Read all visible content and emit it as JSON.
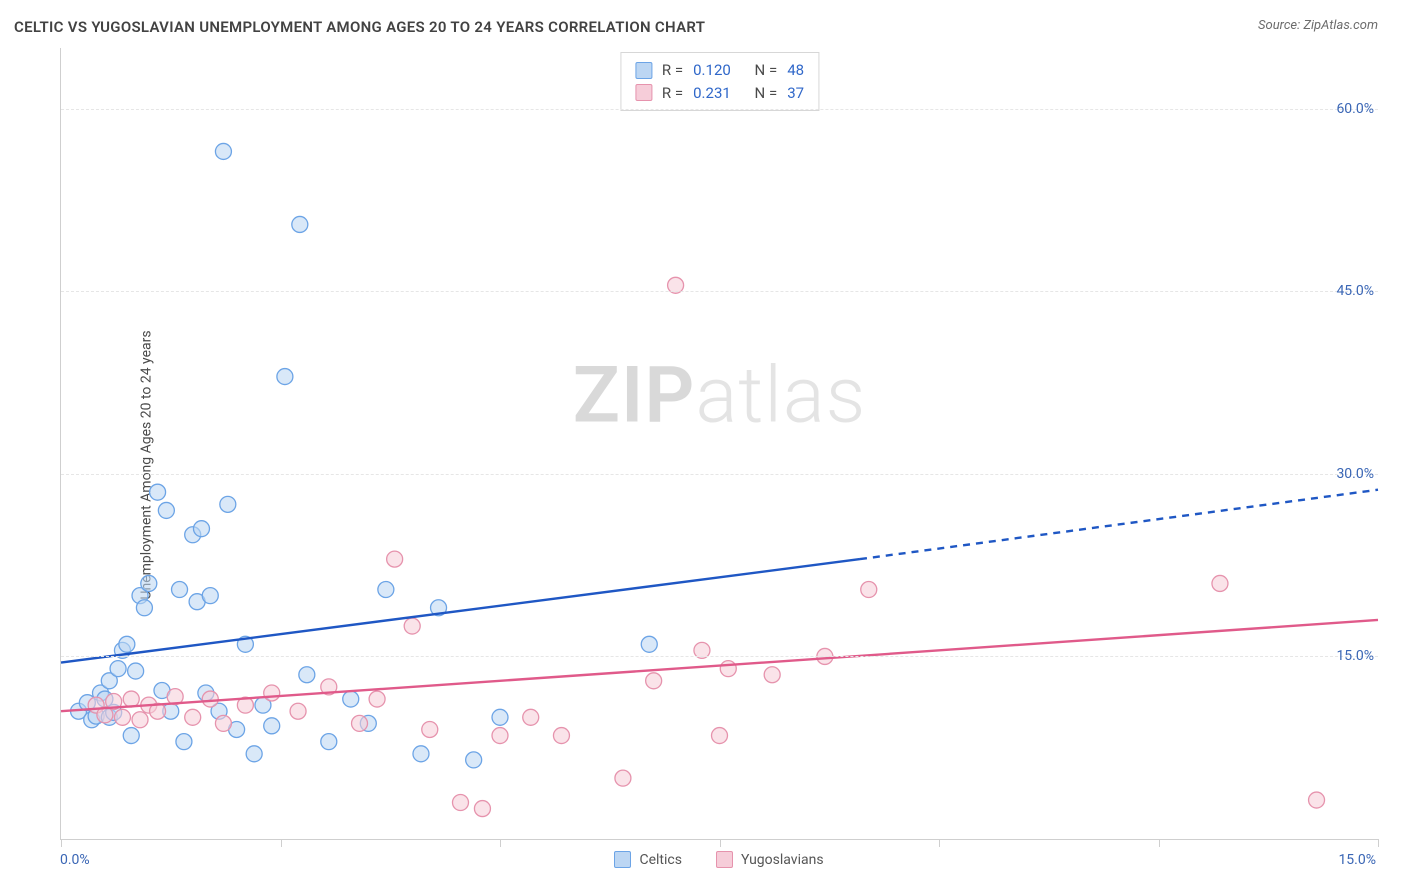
{
  "meta": {
    "title": "CELTIC VS YUGOSLAVIAN UNEMPLOYMENT AMONG AGES 20 TO 24 YEARS CORRELATION CHART",
    "source_prefix": "Source: ",
    "source_name": "ZipAtlas.com",
    "watermark_a": "ZIP",
    "watermark_b": "atlas"
  },
  "chart": {
    "type": "scatter-with-trend",
    "background_color": "#ffffff",
    "grid_color": "#e6e6e6",
    "axis_color": "#cfcfcf",
    "yaxis_label": "Unemployment Among Ages 20 to 24 years",
    "yaxis_label_fontsize": 14,
    "tick_label_color": "#3a66b5",
    "tick_label_fontsize": 14,
    "xlim": [
      0,
      15
    ],
    "ylim": [
      0,
      65
    ],
    "xticks": [
      0,
      2.5,
      5,
      7.5,
      10,
      12.5,
      15
    ],
    "yticks": [
      15,
      30,
      45,
      60
    ],
    "ytick_labels": [
      "15.0%",
      "30.0%",
      "45.0%",
      "60.0%"
    ],
    "x_min_label": "0.0%",
    "x_max_label": "15.0%",
    "marker_radius": 8,
    "marker_stroke_width": 1.3,
    "marker_fill_opacity": 0.22,
    "trend_stroke_width": 2.4,
    "series": [
      {
        "key": "celtics",
        "label": "Celtics",
        "stroke": "#6ca4e6",
        "fill": "#bcd6f3",
        "trend_color": "#1f57c4",
        "trend": {
          "x1": 0,
          "y1": 14.5,
          "x2": 9.1,
          "y2": 23.0
        },
        "trend_ext": {
          "x1": 9.1,
          "y1": 23.0,
          "x2": 15,
          "y2": 28.7
        },
        "points": [
          [
            0.2,
            10.5
          ],
          [
            0.3,
            11.2
          ],
          [
            0.35,
            9.8
          ],
          [
            0.4,
            10.1
          ],
          [
            0.45,
            12.0
          ],
          [
            0.5,
            11.5
          ],
          [
            0.55,
            13.0
          ],
          [
            0.55,
            10.0
          ],
          [
            0.6,
            10.4
          ],
          [
            0.65,
            14.0
          ],
          [
            0.7,
            15.5
          ],
          [
            0.75,
            16.0
          ],
          [
            0.8,
            8.5
          ],
          [
            0.85,
            13.8
          ],
          [
            0.9,
            20.0
          ],
          [
            0.95,
            19.0
          ],
          [
            1.0,
            21.0
          ],
          [
            1.1,
            28.5
          ],
          [
            1.15,
            12.2
          ],
          [
            1.2,
            27.0
          ],
          [
            1.25,
            10.5
          ],
          [
            1.35,
            20.5
          ],
          [
            1.4,
            8.0
          ],
          [
            1.5,
            25.0
          ],
          [
            1.55,
            19.5
          ],
          [
            1.6,
            25.5
          ],
          [
            1.65,
            12.0
          ],
          [
            1.7,
            20.0
          ],
          [
            1.8,
            10.5
          ],
          [
            1.85,
            56.5
          ],
          [
            1.9,
            27.5
          ],
          [
            2.0,
            9.0
          ],
          [
            2.1,
            16.0
          ],
          [
            2.2,
            7.0
          ],
          [
            2.3,
            11.0
          ],
          [
            2.4,
            9.3
          ],
          [
            2.55,
            38.0
          ],
          [
            2.72,
            50.5
          ],
          [
            2.8,
            13.5
          ],
          [
            3.05,
            8.0
          ],
          [
            3.3,
            11.5
          ],
          [
            3.5,
            9.5
          ],
          [
            3.7,
            20.5
          ],
          [
            4.1,
            7.0
          ],
          [
            4.3,
            19.0
          ],
          [
            4.7,
            6.5
          ],
          [
            5.0,
            10.0
          ],
          [
            6.7,
            16.0
          ]
        ]
      },
      {
        "key": "yugoslavians",
        "label": "Yugoslavians",
        "stroke": "#e693ad",
        "fill": "#f6cdd9",
        "trend_color": "#e05a8a",
        "trend": {
          "x1": 0,
          "y1": 10.5,
          "x2": 15,
          "y2": 18.0
        },
        "points": [
          [
            0.4,
            11.0
          ],
          [
            0.5,
            10.2
          ],
          [
            0.6,
            11.3
          ],
          [
            0.7,
            10.0
          ],
          [
            0.8,
            11.5
          ],
          [
            0.9,
            9.8
          ],
          [
            1.0,
            11.0
          ],
          [
            1.1,
            10.5
          ],
          [
            1.3,
            11.7
          ],
          [
            1.5,
            10.0
          ],
          [
            1.7,
            11.5
          ],
          [
            1.85,
            9.5
          ],
          [
            2.1,
            11.0
          ],
          [
            2.4,
            12.0
          ],
          [
            2.7,
            10.5
          ],
          [
            3.05,
            12.5
          ],
          [
            3.4,
            9.5
          ],
          [
            3.6,
            11.5
          ],
          [
            3.8,
            23.0
          ],
          [
            4.0,
            17.5
          ],
          [
            4.2,
            9.0
          ],
          [
            4.55,
            3.0
          ],
          [
            4.8,
            2.5
          ],
          [
            5.0,
            8.5
          ],
          [
            5.35,
            10.0
          ],
          [
            5.7,
            8.5
          ],
          [
            6.4,
            5.0
          ],
          [
            6.75,
            13.0
          ],
          [
            7.0,
            45.5
          ],
          [
            7.3,
            15.5
          ],
          [
            7.5,
            8.5
          ],
          [
            7.6,
            14.0
          ],
          [
            8.1,
            13.5
          ],
          [
            8.7,
            15.0
          ],
          [
            9.2,
            20.5
          ],
          [
            13.2,
            21.0
          ],
          [
            14.3,
            3.2
          ]
        ]
      }
    ],
    "stats_box": {
      "rows": [
        {
          "swatch_stroke": "#6ca4e6",
          "swatch_fill": "#bcd6f3",
          "r_label": "R =",
          "r_value": "0.120",
          "n_label": "N =",
          "n_value": "48"
        },
        {
          "swatch_stroke": "#e693ad",
          "swatch_fill": "#f6cdd9",
          "r_label": "R =",
          "r_value": "0.231",
          "n_label": "N =",
          "n_value": "37"
        }
      ]
    }
  }
}
